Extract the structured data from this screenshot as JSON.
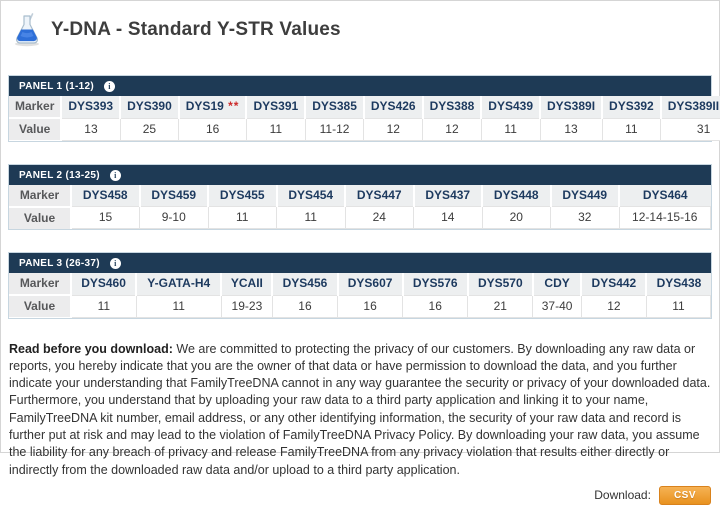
{
  "header": {
    "title": "Y-DNA - Standard Y-STR Values",
    "icon": "flask-icon"
  },
  "table_row_headers": {
    "marker": "Marker",
    "value": "Value"
  },
  "panels": [
    {
      "label": "PANEL 1 (1-12)",
      "columns": [
        {
          "marker": "DYS393",
          "value": "13"
        },
        {
          "marker": "DYS390",
          "value": "25"
        },
        {
          "marker": "DYS19",
          "asterisks": "**",
          "value": "16"
        },
        {
          "marker": "DYS391",
          "value": "11"
        },
        {
          "marker": "DYS385",
          "value": "11-12"
        },
        {
          "marker": "DYS426",
          "value": "12"
        },
        {
          "marker": "DYS388",
          "value": "12"
        },
        {
          "marker": "DYS439",
          "value": "11"
        },
        {
          "marker": "DYS389I",
          "value": "13"
        },
        {
          "marker": "DYS392",
          "value": "11"
        },
        {
          "marker": "DYS389II",
          "asterisks": "***",
          "value": "31"
        }
      ]
    },
    {
      "label": "PANEL 2 (13-25)",
      "columns": [
        {
          "marker": "DYS458",
          "value": "15"
        },
        {
          "marker": "DYS459",
          "value": "9-10"
        },
        {
          "marker": "DYS455",
          "value": "11"
        },
        {
          "marker": "DYS454",
          "value": "11"
        },
        {
          "marker": "DYS447",
          "value": "24"
        },
        {
          "marker": "DYS437",
          "value": "14"
        },
        {
          "marker": "DYS448",
          "value": "20"
        },
        {
          "marker": "DYS449",
          "value": "32"
        },
        {
          "marker": "DYS464",
          "value": "12-14-15-16"
        }
      ]
    },
    {
      "label": "PANEL 3 (26-37)",
      "columns": [
        {
          "marker": "DYS460",
          "value": "11"
        },
        {
          "marker": "Y-GATA-H4",
          "value": "11"
        },
        {
          "marker": "YCAII",
          "value": "19-23"
        },
        {
          "marker": "DYS456",
          "value": "16"
        },
        {
          "marker": "DYS607",
          "value": "16"
        },
        {
          "marker": "DYS576",
          "value": "16"
        },
        {
          "marker": "DYS570",
          "value": "21"
        },
        {
          "marker": "CDY",
          "value": "37-40"
        },
        {
          "marker": "DYS442",
          "value": "12"
        },
        {
          "marker": "DYS438",
          "value": "11"
        }
      ]
    }
  ],
  "legal": {
    "lead": "Read before you download:",
    "body": " We are committed to protecting the privacy of our customers. By downloading any raw data or reports, you hereby indicate that you are the owner of that data or have permission to download the data, and you further indicate your understanding that FamilyTreeDNA cannot in any way guarantee the security or privacy of your downloaded data. Furthermore, you understand that by uploading your raw data to a third party application and linking it to your name, FamilyTreeDNA kit number, email address, or any other identifying information, the security of your raw data and record is further put at risk and may lead to the violation of FamilyTreeDNA Privacy Policy. By downloading your raw data, you assume the liability for any breach of privacy and release FamilyTreeDNA from any privacy violation that results either directly or indirectly from the downloaded raw data and/or upload to a third party application."
  },
  "download": {
    "label": "Download:",
    "button_label": "CSV"
  },
  "colors": {
    "panel_header_bg": "#1e3a55",
    "marker_text": "#1d3a5f",
    "asterisk_red": "#cc2a2a",
    "csv_orange": "#ef9c2e"
  }
}
